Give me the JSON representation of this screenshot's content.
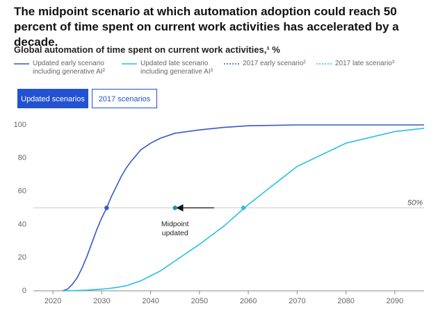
{
  "chart_data": {
    "type": "line",
    "title": "The midpoint scenario at which automation adoption could reach 50 percent of time spent on current work activities has accelerated by a decade.",
    "subtitle": "Global automation of time spent on current work activities,¹ %",
    "tabs": [
      "Updated scenarios",
      "2017 scenarios"
    ],
    "active_tab": 0,
    "x": [
      2022,
      2023,
      2024,
      2025,
      2026,
      2027,
      2028,
      2029,
      2030,
      2031,
      2032,
      2033,
      2034,
      2035,
      2036,
      2038,
      2040,
      2042,
      2045,
      2050,
      2055,
      2060,
      2070,
      2080,
      2090,
      2096
    ],
    "series": [
      {
        "name": "Updated early scenario including generative AI²",
        "color": "#3558c8",
        "values": [
          0,
          1,
          4,
          8,
          14,
          21,
          29,
          37,
          44,
          50,
          57,
          63,
          69,
          74,
          78,
          85,
          89,
          92,
          95,
          97,
          98.5,
          99.5,
          100,
          100,
          100,
          100
        ]
      },
      {
        "name": "Updated late scenario including generative AI³",
        "color": "#25c0e2",
        "values": [
          0,
          0,
          0.1,
          0.2,
          0.3,
          0.4,
          0.6,
          0.8,
          1,
          1.3,
          1.6,
          2,
          2.5,
          3,
          4,
          6,
          9,
          12,
          18,
          28,
          39,
          52,
          75,
          89,
          96,
          98
        ]
      },
      {
        "name": "2017 early scenario²",
        "color": "#3558c8",
        "dashed": true
      },
      {
        "name": "2017 late scenario³",
        "color": "#25c0e2",
        "dashed": true
      }
    ],
    "markers": [
      {
        "x": 2031,
        "y": 50,
        "color": "#3558c8"
      },
      {
        "x": 2045,
        "y": 50,
        "color": "#1e8fb8"
      },
      {
        "x": 2059,
        "y": 50,
        "color": "#25c0e2"
      }
    ],
    "annotation": {
      "text": "Midpoint updated",
      "arrow_from": 2053,
      "arrow_to": 2045
    },
    "reference_line": {
      "value": 50,
      "label": "50%"
    },
    "xlim": [
      2016,
      2096
    ],
    "xticks": [
      2020,
      2030,
      2040,
      2050,
      2060,
      2070,
      2080,
      2090
    ],
    "ylim": [
      0,
      100
    ],
    "yticks": [
      0,
      20,
      40,
      60,
      80,
      100
    ]
  }
}
